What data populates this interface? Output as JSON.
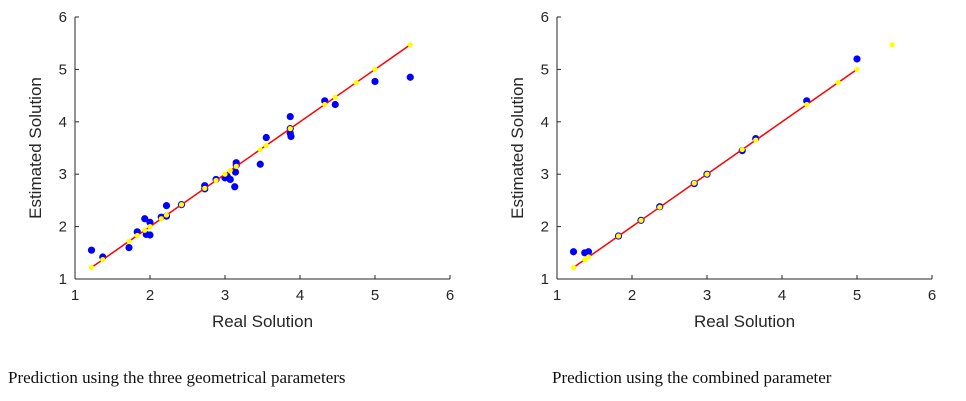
{
  "chart_data": [
    {
      "type": "scatter",
      "xlabel": "Real Solution",
      "ylabel": "Estimated Solution",
      "caption": "Prediction using the three geometrical parameters",
      "xlim": [
        1,
        6
      ],
      "ylim": [
        1,
        6
      ],
      "xticks": [
        1,
        2,
        3,
        4,
        5,
        6
      ],
      "yticks": [
        1,
        2,
        3,
        4,
        5,
        6
      ],
      "grid": false,
      "series": [
        {
          "kind": "points",
          "color": "#0000ff",
          "x": [
            1.22,
            1.37,
            1.72,
            1.83,
            1.93,
            1.95,
            2.0,
            2.0,
            2.15,
            2.22,
            2.22,
            2.42,
            2.73,
            2.73,
            2.88,
            3.0,
            3.03,
            3.07,
            3.13,
            3.14,
            3.15,
            3.15,
            3.47,
            3.55,
            3.87,
            3.87,
            3.87,
            3.88,
            4.33,
            4.47,
            5.0,
            5.47
          ],
          "y": [
            1.55,
            1.42,
            1.6,
            1.9,
            2.15,
            1.85,
            2.08,
            1.84,
            2.18,
            2.2,
            2.4,
            2.42,
            2.78,
            2.72,
            2.9,
            2.93,
            2.96,
            2.9,
            2.76,
            3.04,
            3.22,
            3.17,
            3.19,
            3.7,
            4.1,
            3.87,
            3.78,
            3.72,
            4.4,
            4.33,
            4.77,
            4.85
          ]
        },
        {
          "kind": "points",
          "color": "#ffff00",
          "x": [
            1.22,
            1.37,
            1.72,
            1.83,
            1.93,
            2.0,
            2.15,
            2.22,
            2.42,
            2.73,
            2.88,
            3.0,
            3.07,
            3.15,
            3.47,
            3.55,
            3.87,
            4.33,
            4.47,
            4.75,
            5.0,
            5.47
          ],
          "y": [
            1.22,
            1.37,
            1.72,
            1.83,
            1.93,
            2.0,
            2.15,
            2.22,
            2.42,
            2.73,
            2.88,
            3.0,
            3.07,
            3.15,
            3.47,
            3.55,
            3.87,
            4.33,
            4.47,
            4.75,
            5.0,
            5.47
          ]
        },
        {
          "kind": "line",
          "color": "#ff0000",
          "x": [
            1.22,
            5.47
          ],
          "y": [
            1.22,
            5.47
          ]
        }
      ]
    },
    {
      "type": "scatter",
      "xlabel": "Real Solution",
      "ylabel": "Estimated Solution",
      "caption": "Prediction using the combined parameter",
      "xlim": [
        1,
        6
      ],
      "ylim": [
        1,
        6
      ],
      "xticks": [
        1,
        2,
        3,
        4,
        5,
        6
      ],
      "yticks": [
        1,
        2,
        3,
        4,
        5,
        6
      ],
      "grid": false,
      "series": [
        {
          "kind": "points",
          "color": "#0000ff",
          "x": [
            1.22,
            1.37,
            1.42,
            1.82,
            2.12,
            2.37,
            2.83,
            3.0,
            3.47,
            3.65,
            4.33,
            5.0
          ],
          "y": [
            1.52,
            1.5,
            1.52,
            1.82,
            2.12,
            2.38,
            2.82,
            3.0,
            3.45,
            3.68,
            4.4,
            5.2
          ]
        },
        {
          "kind": "points",
          "color": "#ffff00",
          "x": [
            1.22,
            1.37,
            1.42,
            1.82,
            2.12,
            2.37,
            2.83,
            3.0,
            3.47,
            3.65,
            4.33,
            4.75,
            5.0,
            5.47
          ],
          "y": [
            1.22,
            1.37,
            1.42,
            1.82,
            2.12,
            2.37,
            2.83,
            3.0,
            3.47,
            3.65,
            4.33,
            4.75,
            5.0,
            5.47
          ]
        },
        {
          "kind": "line",
          "color": "#ff0000",
          "x": [
            1.22,
            5.0
          ],
          "y": [
            1.22,
            5.0
          ]
        }
      ]
    }
  ]
}
